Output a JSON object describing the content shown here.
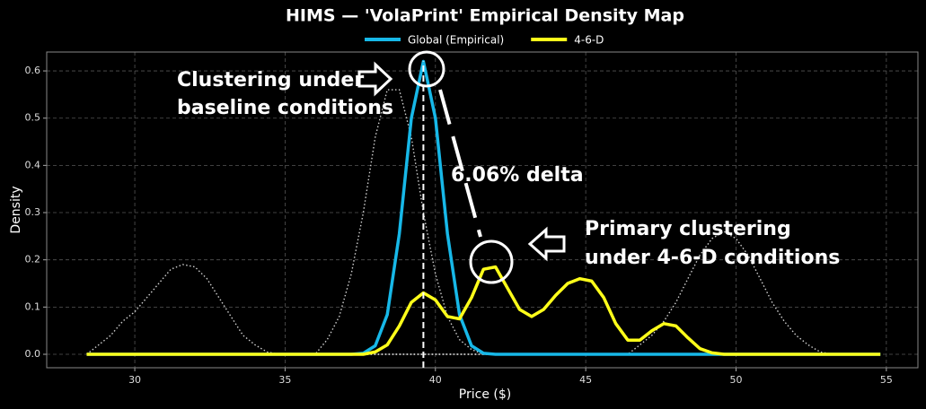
{
  "chart_data": {
    "type": "line",
    "title": "HIMS — 'VolaPrint' Empirical Density Map",
    "x_label": "Price ($)",
    "y_label": "Density",
    "xlim": [
      27.07,
      56.05
    ],
    "ylim": [
      -0.0285,
      0.64
    ],
    "xticks": [
      30,
      35,
      40,
      45,
      50,
      55
    ],
    "yticks": [
      {
        "value": 0,
        "label": "0.0"
      },
      0.1,
      0.2,
      0.3,
      0.4,
      0.5,
      0.6
    ],
    "grid": true,
    "legend": "top",
    "reference_x": 39.6,
    "x": [
      28.4,
      28.8,
      29.2,
      29.6,
      30.0,
      30.4,
      30.8,
      31.2,
      31.6,
      32.0,
      32.4,
      32.8,
      33.2,
      33.6,
      34.0,
      34.4,
      34.8,
      35.2,
      35.6,
      36.0,
      36.4,
      36.8,
      37.2,
      37.6,
      38.0,
      38.4,
      38.8,
      39.2,
      39.6,
      40.0,
      40.4,
      40.8,
      41.2,
      41.6,
      42.0,
      42.4,
      42.8,
      43.2,
      43.6,
      44.0,
      44.4,
      44.8,
      45.2,
      45.6,
      46.0,
      46.4,
      46.8,
      47.2,
      47.6,
      48.0,
      48.4,
      48.8,
      49.2,
      49.6,
      50.0,
      50.4,
      50.8,
      51.2,
      51.6,
      52.0,
      52.4,
      52.8,
      53.2,
      53.6,
      54.0,
      54.4,
      54.8
    ],
    "series": [
      {
        "color": "#cfcfcf",
        "style": "dotted",
        "values": [
          0,
          0.02,
          0.04,
          0.07,
          0.09,
          0.12,
          0.15,
          0.18,
          0.19,
          0.185,
          0.16,
          0.12,
          0.08,
          0.04,
          0.02,
          0.005,
          0,
          0,
          0,
          0,
          0,
          0,
          0,
          0,
          0,
          0,
          0,
          0,
          0,
          0,
          0,
          0,
          0,
          0,
          0,
          0,
          0,
          0,
          0,
          0,
          0,
          0,
          0,
          0,
          0,
          0,
          0,
          0,
          0,
          0,
          0,
          0,
          0,
          0,
          0,
          0,
          0,
          0,
          0,
          0,
          0,
          0,
          0,
          0,
          0,
          0,
          0
        ]
      },
      {
        "color": "#cfcfcf",
        "style": "dotted",
        "values": [
          0,
          0,
          0,
          0,
          0,
          0,
          0,
          0,
          0,
          0,
          0,
          0,
          0,
          0,
          0,
          0,
          0,
          0,
          0,
          0,
          0.031,
          0.08,
          0.17,
          0.3,
          0.46,
          0.56,
          0.56,
          0.46,
          0.3,
          0.17,
          0.08,
          0.031,
          0.01,
          0,
          0,
          0,
          0,
          0,
          0,
          0,
          0,
          0,
          0,
          0,
          0,
          0,
          0,
          0,
          0,
          0,
          0,
          0,
          0,
          0,
          0,
          0,
          0,
          0,
          0,
          0,
          0,
          0,
          0,
          0,
          0,
          0,
          0
        ]
      },
      {
        "color": "#cfcfcf",
        "style": "dotted",
        "values": [
          0,
          0,
          0,
          0,
          0,
          0,
          0,
          0,
          0,
          0,
          0,
          0,
          0,
          0,
          0,
          0,
          0,
          0,
          0,
          0,
          0,
          0,
          0,
          0,
          0,
          0,
          0,
          0,
          0,
          0,
          0,
          0,
          0,
          0,
          0,
          0,
          0,
          0,
          0,
          0,
          0,
          0,
          0,
          0,
          0,
          0,
          0.02,
          0.04,
          0.07,
          0.11,
          0.16,
          0.21,
          0.245,
          0.26,
          0.245,
          0.21,
          0.16,
          0.11,
          0.07,
          0.04,
          0.02,
          0.005,
          0,
          0,
          0,
          0,
          0
        ]
      },
      {
        "name": "Global (Empirical)",
        "color": "#17b8e8",
        "style": "solid",
        "values": [
          0,
          0,
          0,
          0,
          0,
          0,
          0,
          0,
          0,
          0,
          0,
          0,
          0,
          0,
          0,
          0,
          0,
          0,
          0,
          0,
          0,
          0,
          0,
          0.002,
          0.018,
          0.084,
          0.255,
          0.5,
          0.62,
          0.5,
          0.255,
          0.084,
          0.018,
          0.002,
          0,
          0,
          0,
          0,
          0,
          0,
          0,
          0,
          0,
          0,
          0,
          0,
          0,
          0,
          0,
          0,
          0,
          0,
          0,
          0,
          0,
          0,
          0,
          0,
          0,
          0,
          0,
          0,
          0,
          0,
          0,
          0,
          0
        ]
      },
      {
        "name": "4-6-D",
        "color": "#ffff1a",
        "style": "solid",
        "values": [
          0,
          0,
          0,
          0,
          0,
          0,
          0,
          0,
          0,
          0,
          0,
          0,
          0,
          0,
          0,
          0,
          0,
          0,
          0,
          0,
          0,
          0,
          0,
          0,
          0.005,
          0.02,
          0.06,
          0.11,
          0.13,
          0.115,
          0.08,
          0.075,
          0.12,
          0.18,
          0.185,
          0.14,
          0.095,
          0.08,
          0.095,
          0.125,
          0.15,
          0.16,
          0.155,
          0.12,
          0.065,
          0.03,
          0.03,
          0.05,
          0.065,
          0.06,
          0.035,
          0.012,
          0.003,
          0,
          0,
          0,
          0,
          0,
          0,
          0,
          0,
          0,
          0,
          0,
          0,
          0,
          0
        ]
      }
    ],
    "annotations": [
      {
        "lines": [
          "Clustering under",
          "baseline conditions"
        ]
      },
      {
        "lines": [
          "6.06% delta"
        ]
      },
      {
        "lines": [
          "Primary clustering",
          "under 4-6-D conditions"
        ]
      }
    ]
  }
}
